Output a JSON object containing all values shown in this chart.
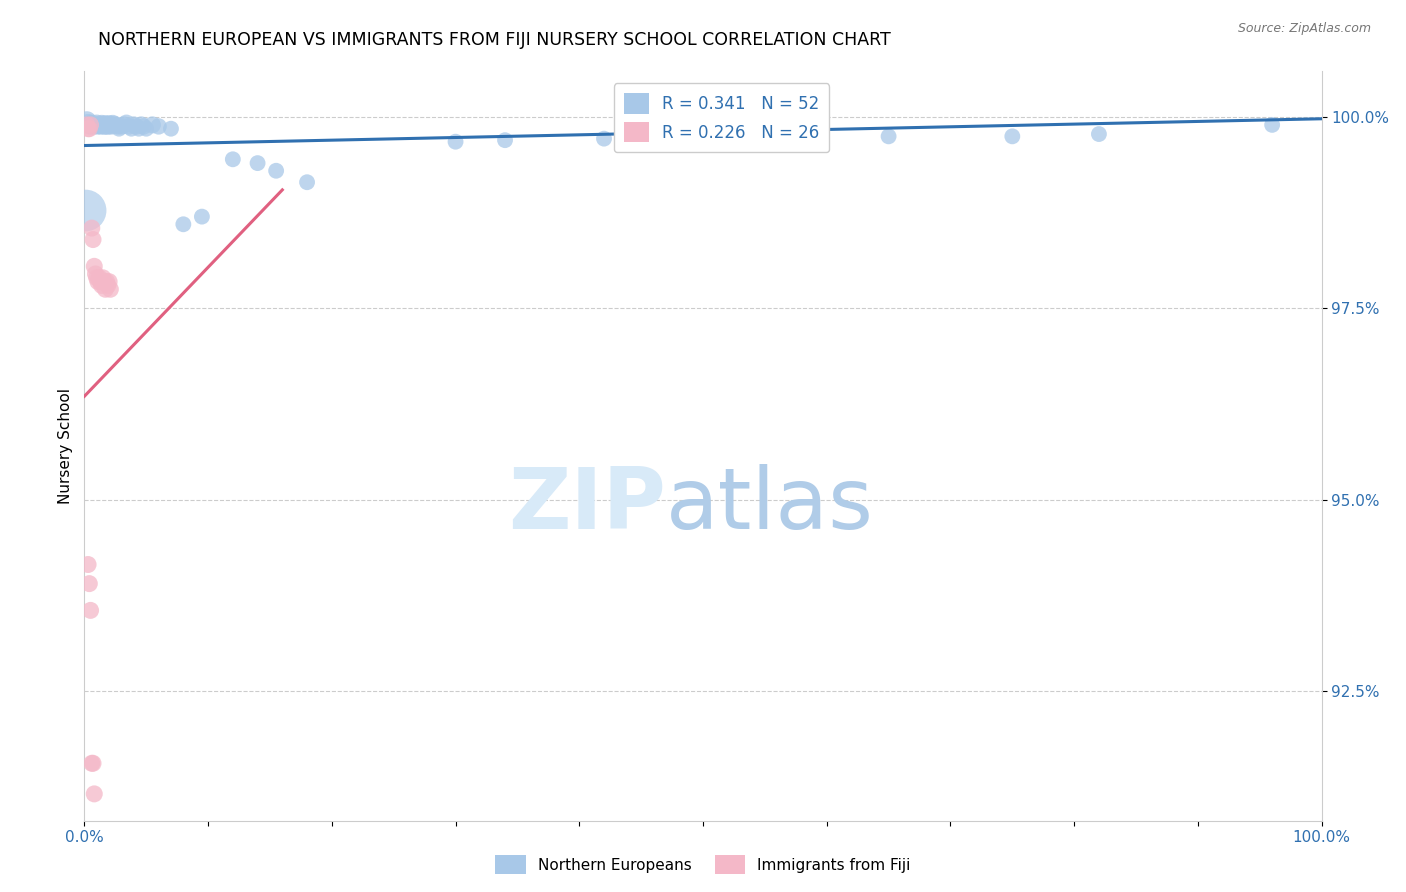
{
  "title": "NORTHERN EUROPEAN VS IMMIGRANTS FROM FIJI NURSERY SCHOOL CORRELATION CHART",
  "source": "Source: ZipAtlas.com",
  "ylabel": "Nursery School",
  "ytick_labels": [
    "100.0%",
    "97.5%",
    "95.0%",
    "92.5%"
  ],
  "ytick_values": [
    1.0,
    0.975,
    0.95,
    0.925
  ],
  "xlim": [
    0.0,
    1.0
  ],
  "ylim": [
    0.908,
    1.006
  ],
  "legend_blue_r": "R = 0.341",
  "legend_blue_n": "N = 52",
  "legend_pink_r": "R = 0.226",
  "legend_pink_n": "N = 26",
  "blue_color": "#a8c8e8",
  "pink_color": "#f4b8c8",
  "blue_line_color": "#3070b0",
  "pink_line_color": "#e06080",
  "blue_trend_x": [
    0.0,
    1.0
  ],
  "blue_trend_y": [
    0.9963,
    0.9998
  ],
  "pink_trend_x": [
    0.0,
    0.16
  ],
  "pink_trend_y": [
    0.9635,
    0.9905
  ],
  "blue_x": [
    0.002,
    0.003,
    0.004,
    0.005,
    0.006,
    0.007,
    0.008,
    0.01,
    0.011,
    0.012,
    0.013,
    0.014,
    0.015,
    0.016,
    0.017,
    0.018,
    0.019,
    0.02,
    0.021,
    0.022,
    0.023,
    0.025,
    0.027,
    0.028,
    0.03,
    0.032,
    0.034,
    0.036,
    0.038,
    0.04,
    0.042,
    0.044,
    0.046,
    0.048,
    0.05,
    0.055,
    0.06,
    0.07,
    0.12,
    0.14,
    0.155,
    0.18,
    0.3,
    0.34,
    0.42,
    0.55,
    0.65,
    0.75,
    0.82,
    0.96,
    0.08,
    0.095
  ],
  "blue_y": [
    0.9995,
    0.9992,
    0.999,
    0.9988,
    0.9992,
    0.999,
    0.9988,
    0.9992,
    0.9988,
    0.999,
    0.9988,
    0.9992,
    0.999,
    0.9988,
    0.9992,
    0.999,
    0.9988,
    0.9992,
    0.999,
    0.9988,
    0.9992,
    0.999,
    0.9988,
    0.9985,
    0.9988,
    0.999,
    0.9992,
    0.9988,
    0.9985,
    0.999,
    0.9988,
    0.9985,
    0.999,
    0.9988,
    0.9985,
    0.999,
    0.9988,
    0.9985,
    0.9945,
    0.994,
    0.993,
    0.9915,
    0.9968,
    0.997,
    0.9972,
    0.9975,
    0.9975,
    0.9975,
    0.9978,
    0.999,
    0.986,
    0.987
  ],
  "blue_sizes": [
    200,
    180,
    160,
    150,
    160,
    150,
    140,
    160,
    140,
    150,
    140,
    150,
    160,
    150,
    140,
    160,
    150,
    140,
    160,
    140,
    150,
    160,
    140,
    130,
    140,
    150,
    160,
    140,
    130,
    150,
    140,
    130,
    150,
    140,
    130,
    150,
    140,
    130,
    130,
    130,
    130,
    130,
    130,
    130,
    130,
    130,
    130,
    130,
    130,
    130,
    130,
    130
  ],
  "blue_large_x": [
    0.001
  ],
  "blue_large_y": [
    0.9878
  ],
  "blue_large_size": [
    900
  ],
  "pink_x": [
    0.002,
    0.003,
    0.004,
    0.005,
    0.006,
    0.007,
    0.008,
    0.009,
    0.01,
    0.011,
    0.012,
    0.013,
    0.014,
    0.015,
    0.016,
    0.017,
    0.018,
    0.019,
    0.02,
    0.021,
    0.003,
    0.004,
    0.005,
    0.006,
    0.007,
    0.008
  ],
  "pink_y": [
    0.999,
    0.9985,
    0.9985,
    0.999,
    0.9855,
    0.984,
    0.9805,
    0.9795,
    0.979,
    0.9785,
    0.979,
    0.9785,
    0.978,
    0.979,
    0.9785,
    0.9775,
    0.9785,
    0.978,
    0.9785,
    0.9775,
    0.9415,
    0.939,
    0.9355,
    0.9155,
    0.9155,
    0.9115
  ],
  "pink_sizes": [
    150,
    150,
    150,
    150,
    150,
    150,
    150,
    150,
    150,
    150,
    150,
    150,
    150,
    150,
    150,
    150,
    150,
    150,
    150,
    150,
    150,
    150,
    150,
    150,
    150,
    150
  ]
}
